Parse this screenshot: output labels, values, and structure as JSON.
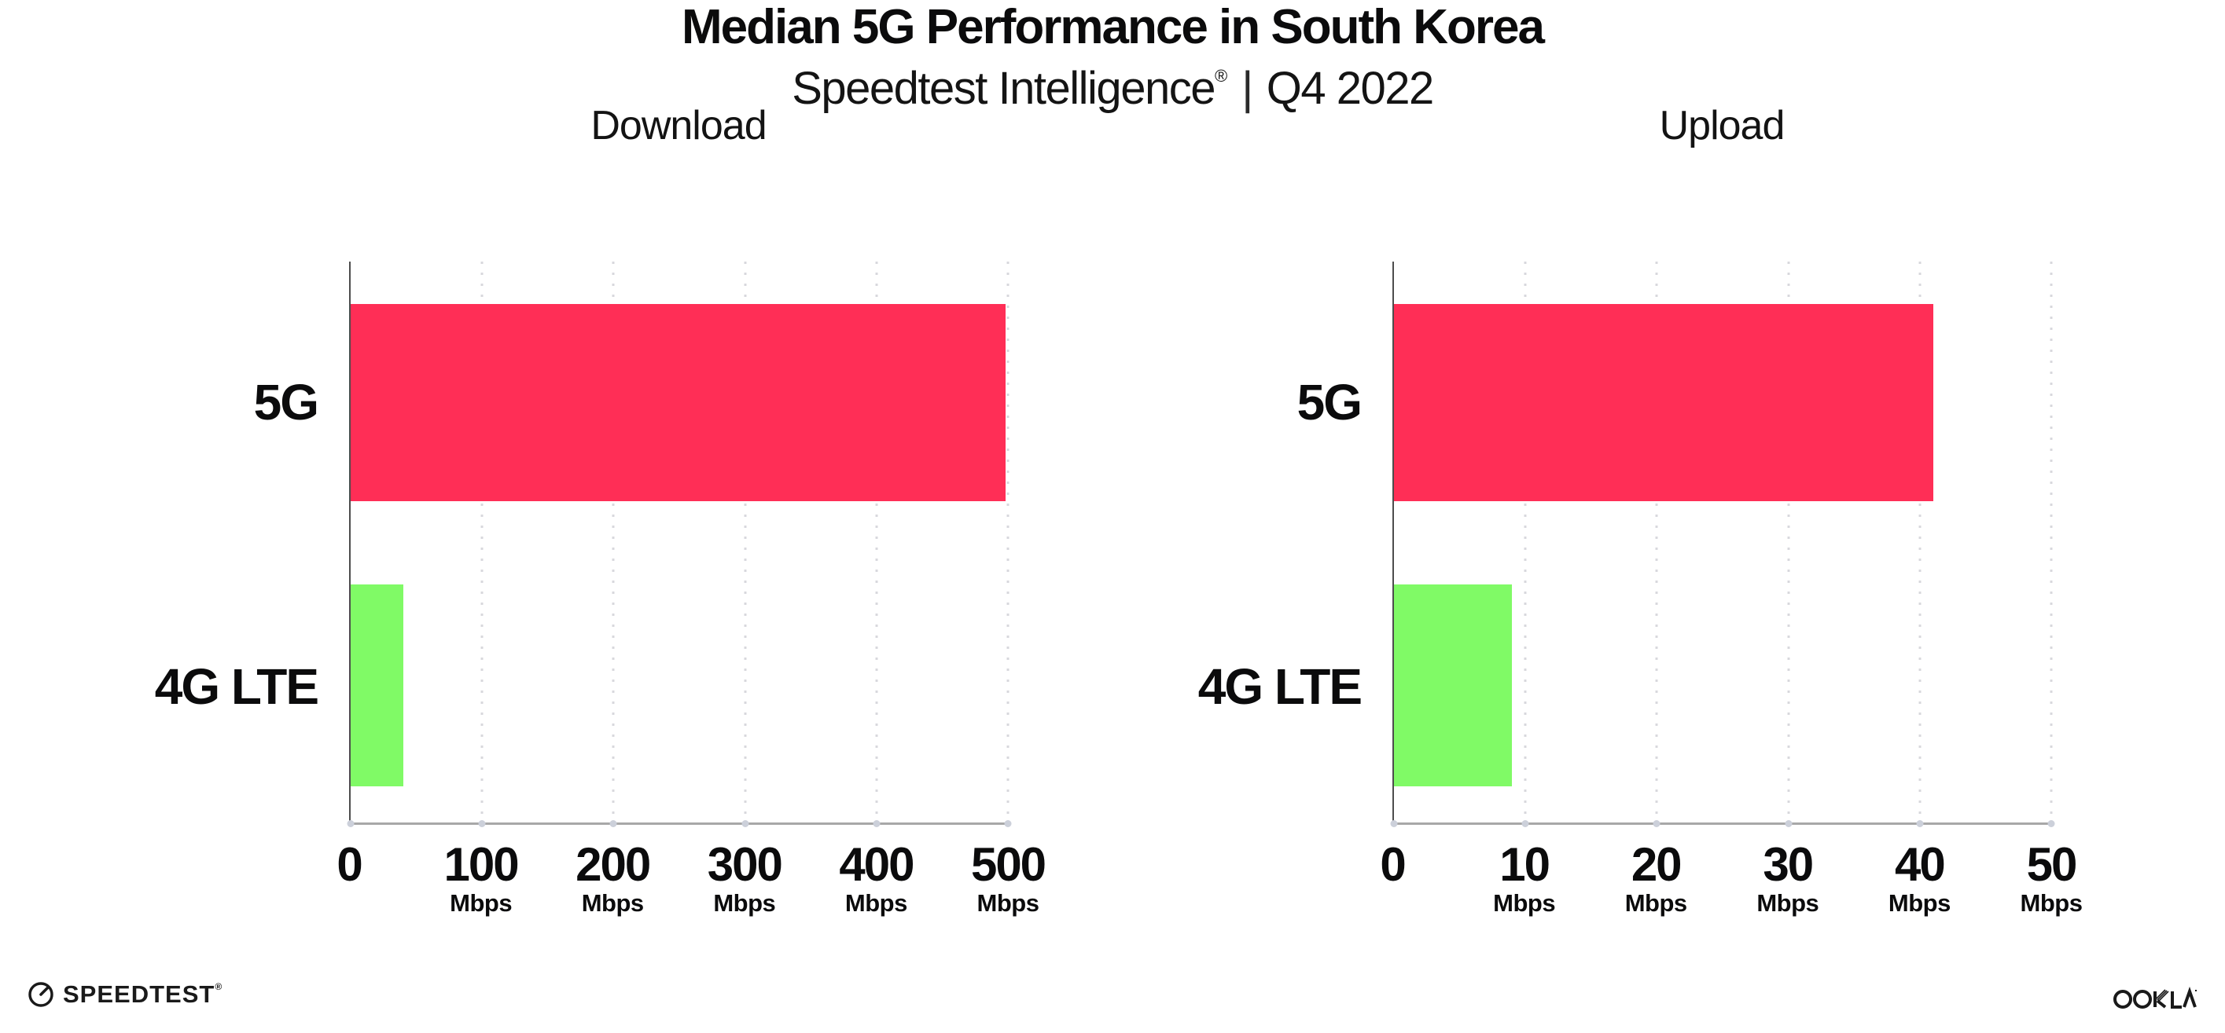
{
  "page": {
    "title": "Median 5G Performance in South Korea",
    "subtitle": {
      "brand": "Speedtest Intelligence",
      "registered_mark": "®",
      "pipe": "|",
      "period": "Q4 2022"
    }
  },
  "colors": {
    "bar_5g": "#FF2E56",
    "bar_4g_lte": "#80FA66",
    "text": "#0b0b0c",
    "x_axis_line": "#a8a8a8",
    "y_axis_line": "#4d4d4d",
    "gridline": "#d8d8dd"
  },
  "chart_data": [
    {
      "type": "bar",
      "orientation": "horizontal",
      "title": "Download",
      "categories": [
        "5G",
        "4G LTE"
      ],
      "values": [
        498,
        40
      ],
      "unit": "Mbps",
      "xlim": [
        0,
        500
      ],
      "ticks": [
        {
          "label": "0",
          "unit": ""
        },
        {
          "label": "100",
          "unit": "Mbps"
        },
        {
          "label": "200",
          "unit": "Mbps"
        },
        {
          "label": "300",
          "unit": "Mbps"
        },
        {
          "label": "400",
          "unit": "Mbps"
        },
        {
          "label": "500",
          "unit": "Mbps"
        }
      ],
      "tick_values": [
        0,
        100,
        200,
        300,
        400,
        500
      ],
      "bar_colors": [
        "#FF2E56",
        "#80FA66"
      ],
      "grid": "dotted-vertical",
      "legend": "none"
    },
    {
      "type": "bar",
      "orientation": "horizontal",
      "title": "Upload",
      "categories": [
        "5G",
        "4G LTE"
      ],
      "values": [
        41,
        9
      ],
      "unit": "Mbps",
      "xlim": [
        0,
        50
      ],
      "ticks": [
        {
          "label": "0",
          "unit": ""
        },
        {
          "label": "10",
          "unit": "Mbps"
        },
        {
          "label": "20",
          "unit": "Mbps"
        },
        {
          "label": "30",
          "unit": "Mbps"
        },
        {
          "label": "40",
          "unit": "Mbps"
        },
        {
          "label": "50",
          "unit": "Mbps"
        }
      ],
      "tick_values": [
        0,
        10,
        20,
        30,
        40,
        50
      ],
      "bar_colors": [
        "#FF2E56",
        "#80FA66"
      ],
      "grid": "dotted-vertical",
      "legend": "none"
    }
  ],
  "footer": {
    "speedtest_logo_text": "SPEEDTEST",
    "speedtest_trademark": "®",
    "ookla_logo_text": "OOKLA"
  }
}
